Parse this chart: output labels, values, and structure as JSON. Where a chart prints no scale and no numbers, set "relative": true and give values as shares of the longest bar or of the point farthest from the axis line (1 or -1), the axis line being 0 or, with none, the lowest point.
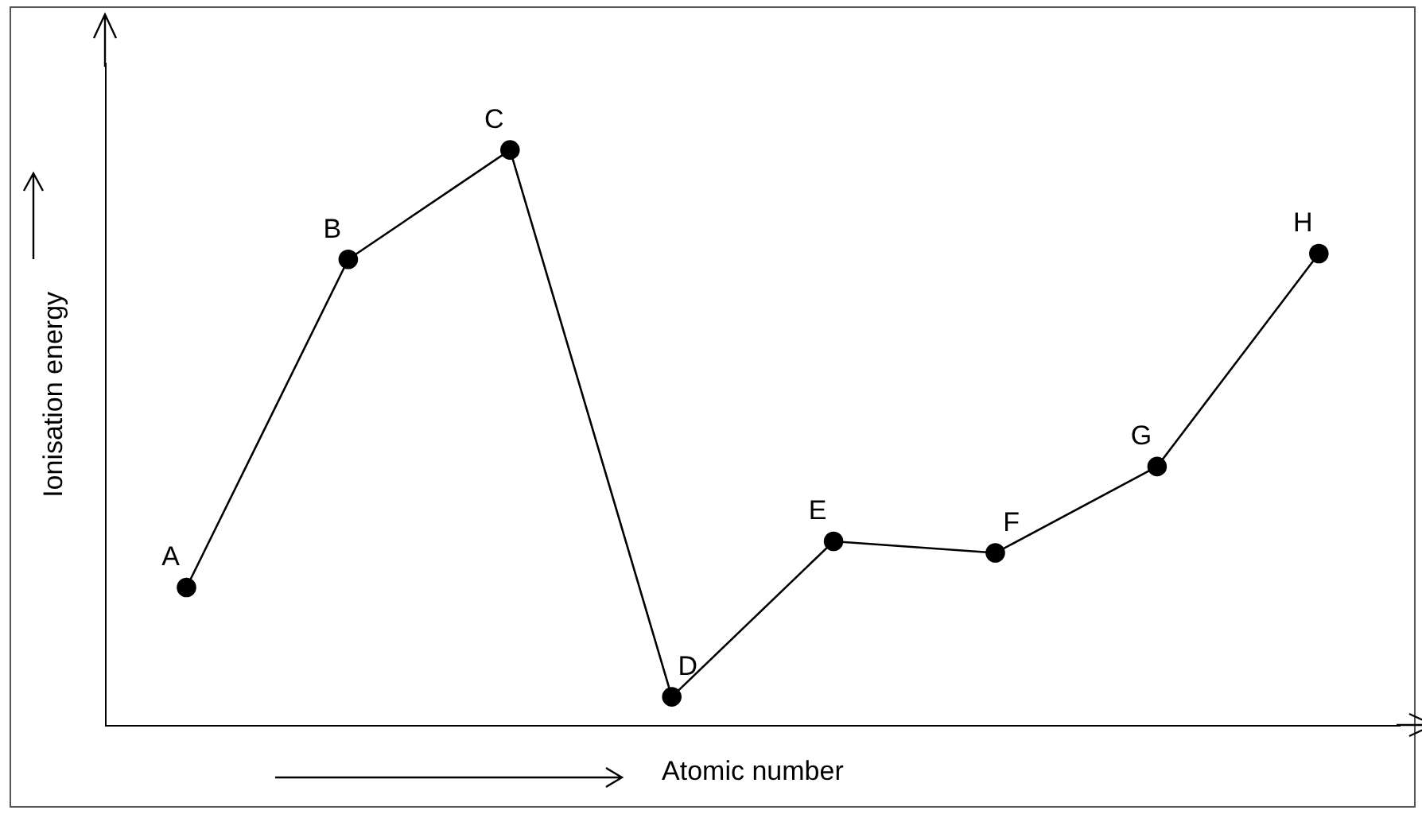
{
  "chart_data": {
    "type": "line",
    "relative": true,
    "xlabel": "Atomic number",
    "ylabel": "Ionisation energy",
    "categories": [
      null,
      null,
      null,
      null,
      null,
      null,
      null,
      null
    ],
    "series": [
      {
        "color": "#000000",
        "values": [
          0.24,
          0.81,
          1,
          0.05,
          0.32,
          0.3,
          0.45,
          0.82
        ]
      }
    ],
    "annotations": [
      {
        "text": "A",
        "y": 0.24
      },
      {
        "text": "B",
        "y": 0.81
      },
      {
        "text": "C",
        "y": 1
      },
      {
        "text": "D",
        "y": 0.05
      },
      {
        "text": "E",
        "y": 0.32
      },
      {
        "text": "F",
        "y": 0.3
      },
      {
        "text": "G",
        "y": 0.45
      },
      {
        "text": "H",
        "y": 0.82
      }
    ],
    "marker": "circle",
    "line_style": "solid",
    "grid": false,
    "legend": false
  }
}
